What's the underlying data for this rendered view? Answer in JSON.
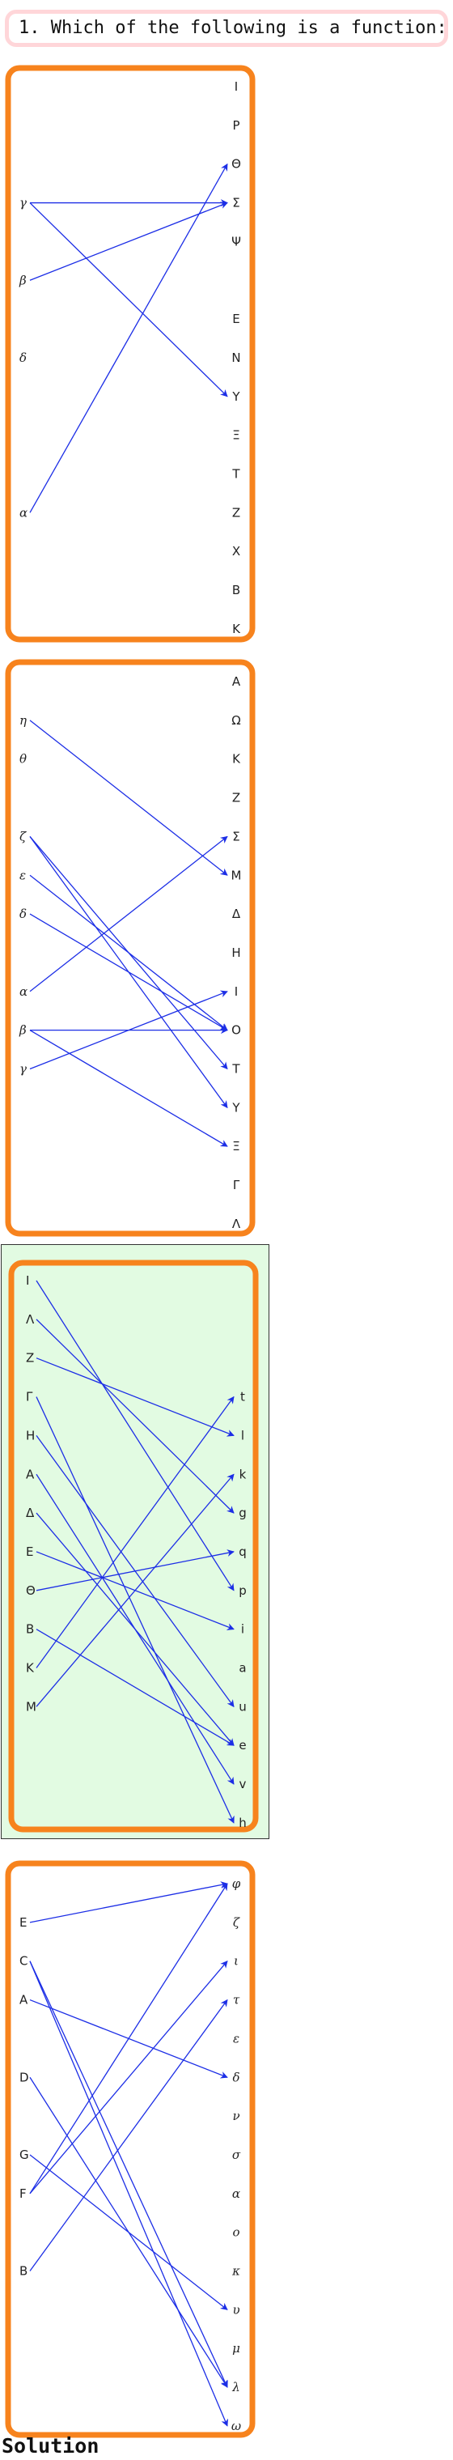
{
  "question": {
    "text": "1. Which of the following is a function:"
  },
  "solution": {
    "label": "Solution"
  },
  "colors": {
    "frame": "#f7831d",
    "arrow": "#1c2ee6",
    "highlight": "#e2fbe2",
    "question_border": "#ffd6d9"
  },
  "panels": [
    {
      "id": "A",
      "highlighted": false,
      "italic": true,
      "left": [
        "γ",
        "β",
        "δ",
        "α"
      ],
      "left_rows": [
        3,
        5,
        7,
        11
      ],
      "right": [
        "Ι",
        "Ρ",
        "Θ",
        "Σ",
        "Ψ",
        "Ε",
        "Ν",
        "Υ",
        "Ξ",
        "Τ",
        "Ζ",
        "Χ",
        "Β",
        "Κ"
      ],
      "right_rows": [
        0,
        1,
        2,
        3,
        4,
        6,
        7,
        8,
        9,
        10,
        11,
        12,
        13,
        14
      ],
      "edges": [
        [
          "γ",
          "Σ"
        ],
        [
          "γ",
          "Υ"
        ],
        [
          "β",
          "Σ"
        ],
        [
          "α",
          "Θ"
        ]
      ]
    },
    {
      "id": "B",
      "highlighted": false,
      "italic": true,
      "left": [
        "η",
        "θ",
        "ζ",
        "ε",
        "δ",
        "α",
        "β",
        "γ"
      ],
      "left_rows": [
        1,
        2,
        4,
        5,
        6,
        8,
        9,
        10
      ],
      "right": [
        "Α",
        "Ω",
        "Κ",
        "Ζ",
        "Σ",
        "Μ",
        "Δ",
        "Η",
        "Ι",
        "Ο",
        "Τ",
        "Υ",
        "Ξ",
        "Γ",
        "Λ"
      ],
      "right_rows": [
        0,
        1,
        2,
        3,
        4,
        5,
        6,
        7,
        8,
        9,
        10,
        11,
        12,
        13,
        14
      ],
      "edges": [
        [
          "η",
          "Μ"
        ],
        [
          "ζ",
          "Τ"
        ],
        [
          "ζ",
          "Υ"
        ],
        [
          "ε",
          "Ο"
        ],
        [
          "δ",
          "Ο"
        ],
        [
          "α",
          "Σ"
        ],
        [
          "β",
          "Ο"
        ],
        [
          "β",
          "Ξ"
        ],
        [
          "γ",
          "Ι"
        ]
      ]
    },
    {
      "id": "C",
      "highlighted": true,
      "italic": false,
      "left": [
        "I",
        "Λ",
        "Z",
        "Γ",
        "H",
        "A",
        "Δ",
        "E",
        "Θ",
        "B",
        "K",
        "M"
      ],
      "left_rows": [
        0,
        1,
        2,
        3,
        4,
        5,
        6,
        7,
        8,
        9,
        10,
        11
      ],
      "right": [
        "t",
        "l",
        "k",
        "g",
        "q",
        "p",
        "i",
        "a",
        "u",
        "e",
        "v",
        "h"
      ],
      "right_rows": [
        3,
        4,
        5,
        6,
        7,
        8,
        9,
        10,
        11,
        12,
        13,
        14
      ],
      "edges": [
        [
          "I",
          "p"
        ],
        [
          "Λ",
          "g"
        ],
        [
          "Z",
          "l"
        ],
        [
          "Γ",
          "h"
        ],
        [
          "H",
          "u"
        ],
        [
          "A",
          "v"
        ],
        [
          "Δ",
          "e"
        ],
        [
          "E",
          "i"
        ],
        [
          "Θ",
          "q"
        ],
        [
          "B",
          "e"
        ],
        [
          "K",
          "t"
        ],
        [
          "M",
          "k"
        ]
      ]
    },
    {
      "id": "D",
      "highlighted": false,
      "italic": false,
      "italic_right": true,
      "left": [
        "E",
        "C",
        "A",
        "D",
        "G",
        "F",
        "B"
      ],
      "left_rows": [
        1,
        2,
        3,
        5,
        7,
        8,
        10
      ],
      "right": [
        "φ",
        "ζ",
        "ι",
        "τ",
        "ε",
        "δ",
        "ν",
        "σ",
        "α",
        "ο",
        "κ",
        "υ",
        "μ",
        "λ",
        "ω"
      ],
      "right_rows": [
        0,
        1,
        2,
        3,
        4,
        5,
        6,
        7,
        8,
        9,
        10,
        11,
        12,
        13,
        14
      ],
      "edges": [
        [
          "E",
          "φ"
        ],
        [
          "C",
          "λ"
        ],
        [
          "C",
          "ω"
        ],
        [
          "A",
          "δ"
        ],
        [
          "D",
          "λ"
        ],
        [
          "G",
          "υ"
        ],
        [
          "F",
          "φ"
        ],
        [
          "F",
          "ι"
        ],
        [
          "B",
          "τ"
        ]
      ]
    }
  ]
}
